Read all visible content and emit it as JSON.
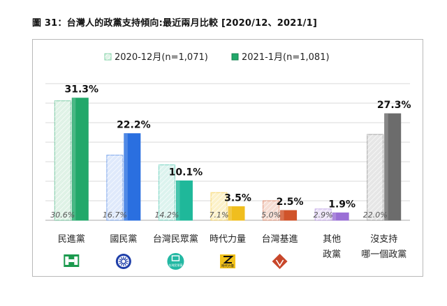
{
  "title": "圖 31：台灣人的政黨支持傾向:最近兩月比較  [2020/12、2021/1]",
  "chart_data": {
    "type": "bar",
    "title": "圖 31：台灣人的政黨支持傾向:最近兩月比較  [2020/12、2021/1]",
    "xlabel": "",
    "ylabel": "",
    "ylim": [
      0,
      35
    ],
    "grid": true,
    "legend_position": "top",
    "categories": [
      [
        "民進黨"
      ],
      [
        "國民黨"
      ],
      [
        "台灣民眾黨"
      ],
      [
        "時代力量"
      ],
      [
        "台灣基進"
      ],
      [
        "其他",
        "政黨"
      ],
      [
        "沒支持",
        "哪一個政黨"
      ]
    ],
    "series": [
      {
        "name": "2020-12月(n=1,071)",
        "values": [
          30.6,
          16.7,
          14.2,
          7.1,
          5.0,
          2.9,
          22.0
        ],
        "labels": [
          "30.6%",
          "16.7%",
          "14.2%",
          "7.1%",
          "5.0%",
          "2.9%",
          "22.0%"
        ]
      },
      {
        "name": "2021-1月(n=1,081)",
        "values": [
          31.3,
          22.2,
          10.1,
          3.5,
          2.5,
          1.9,
          27.3
        ],
        "labels": [
          "31.3%",
          "22.2%",
          "10.1%",
          "3.5%",
          "2.5%",
          "1.9%",
          "27.3%"
        ]
      }
    ],
    "colors": [
      "#22a86a",
      "#2a6fe0",
      "#1fb89a",
      "#f0be1e",
      "#d0532a",
      "#9a6fd6",
      "#6c6c6c"
    ],
    "light_colors": [
      "#dff2e6",
      "#dfe9fb",
      "#dcf3ee",
      "#fcf1c9",
      "#f6ddd3",
      "#ece3f8",
      "#e6e6e6"
    ],
    "logo_icons": [
      "dpp-logo-icon",
      "kmt-logo-icon",
      "tpp-logo-icon",
      "npp-logo-icon",
      "tsp-logo-icon",
      "",
      ""
    ],
    "logo_texts": [
      "",
      "",
      "台灣民眾黨",
      "時代力量",
      "",
      "",
      ""
    ]
  }
}
